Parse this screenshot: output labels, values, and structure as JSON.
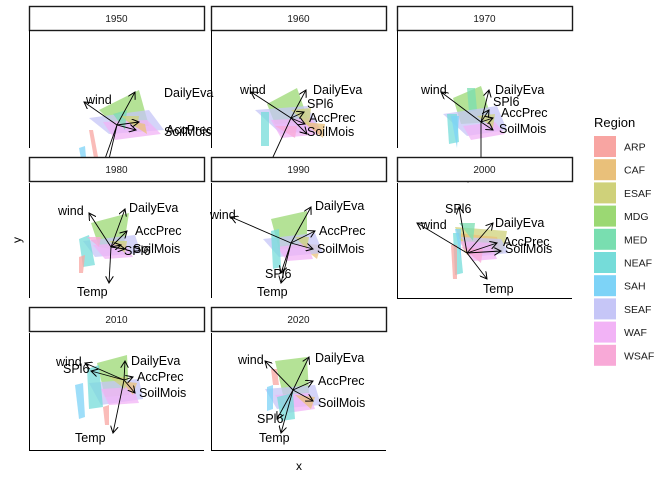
{
  "chart_data": {
    "type": "biplot",
    "xlabel": "x",
    "ylabel": "y",
    "legend": {
      "title": "Region",
      "position": "right",
      "entries": [
        {
          "name": "ARP",
          "color": "#F8A5A2"
        },
        {
          "name": "CAF",
          "color": "#E9C07A"
        },
        {
          "name": "ESAF",
          "color": "#CFD17A"
        },
        {
          "name": "MDG",
          "color": "#9BD873"
        },
        {
          "name": "MED",
          "color": "#79DEB0"
        },
        {
          "name": "NEAF",
          "color": "#75DCD9"
        },
        {
          "name": "SAH",
          "color": "#7DD3F7"
        },
        {
          "name": "SEAF",
          "color": "#C6C6F7"
        },
        {
          "name": "WAF",
          "color": "#F2B3F6"
        },
        {
          "name": "WSAF",
          "color": "#F8A9D7"
        }
      ]
    },
    "panels": [
      {
        "title": "1950"
      },
      {
        "title": "1960"
      },
      {
        "title": "1970"
      },
      {
        "title": "1980"
      },
      {
        "title": "1990"
      },
      {
        "title": "2000"
      },
      {
        "title": "2010"
      },
      {
        "title": "2020"
      }
    ]
  }
}
